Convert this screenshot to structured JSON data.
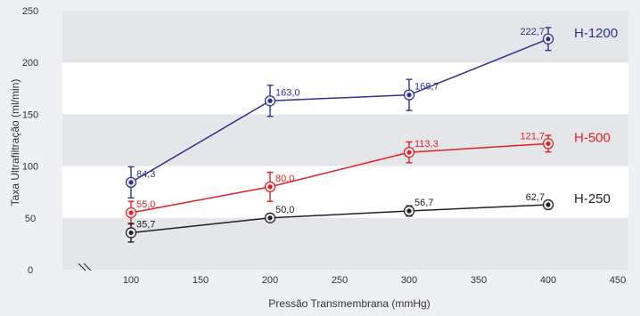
{
  "chart_data": {
    "type": "line",
    "title": "",
    "xlabel": "Pressão Transmembrana (mmHg)",
    "ylabel": "Taxa Ultrafiltração (ml/min)",
    "x_ticks": [
      100,
      150,
      200,
      250,
      300,
      350,
      400,
      450
    ],
    "y_ticks": [
      0,
      50,
      100,
      150,
      200,
      250
    ],
    "xlim": [
      50,
      455
    ],
    "ylim": [
      0,
      250
    ],
    "grid": "horizontal bands",
    "series": [
      {
        "name": "H-1200",
        "color": "#2e3192",
        "x": [
          100,
          200,
          300,
          400
        ],
        "y": [
          84.3,
          163.0,
          168.7,
          222.7
        ],
        "err": [
          15,
          15,
          15,
          11
        ],
        "labels": [
          "84,3",
          "163,0",
          "168,7",
          "222,7"
        ]
      },
      {
        "name": "H-500",
        "color": "#e31e24",
        "x": [
          100,
          200,
          300,
          400
        ],
        "y": [
          55.0,
          80.0,
          113.3,
          121.7
        ],
        "err": [
          11,
          14,
          10,
          8
        ],
        "labels": [
          "55,0",
          "80,0",
          "113,3",
          "121,7"
        ]
      },
      {
        "name": "H-250",
        "color": "#222222",
        "x": [
          100,
          200,
          300,
          400
        ],
        "y": [
          35.7,
          50.0,
          56.7,
          62.7
        ],
        "err": [
          9,
          4,
          5,
          4
        ],
        "labels": [
          "35,7",
          "50,0",
          "56,7",
          "62,7"
        ]
      }
    ]
  }
}
